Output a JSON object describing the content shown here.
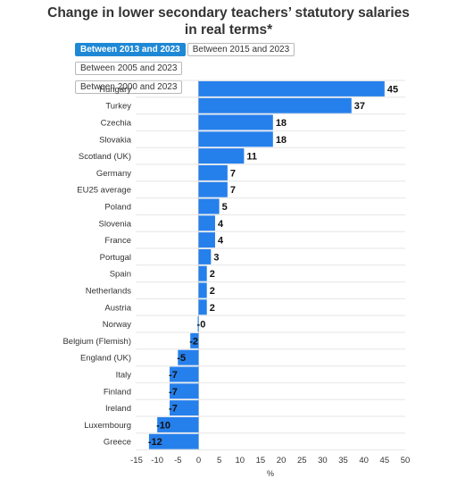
{
  "title_line1": "Change in lower secondary teachers’ statutory salaries",
  "title_line2": "in real terms*",
  "tabs": [
    {
      "label": "Between 2013 and 2023",
      "active": true
    },
    {
      "label": "Between 2015 and 2023",
      "active": false
    },
    {
      "label": "Between 2005 and 2023",
      "active": false
    },
    {
      "label": "Between 2000 and 2023",
      "active": false
    }
  ],
  "colors": {
    "bar": "#2680eb",
    "title": "#333333",
    "grid": "#e6e6e6",
    "active_tab": "#1e88d6"
  },
  "chart_data": {
    "type": "bar",
    "orientation": "horizontal",
    "categories": [
      "Hungary",
      "Turkey",
      "Czechia",
      "Slovakia",
      "Scotland (UK)",
      "Germany",
      "EU25 average",
      "Poland",
      "Slovenia",
      "France",
      "Portugal",
      "Spain",
      "Netherlands",
      "Austria",
      "Norway",
      "Belgium (Flemish)",
      "England (UK)",
      "Italy",
      "Finland",
      "Ireland",
      "Luxembourg",
      "Greece"
    ],
    "values": [
      45,
      37,
      18,
      18,
      11,
      7,
      7,
      5,
      4,
      4,
      3,
      2,
      2,
      2,
      -0.2,
      -2,
      -5,
      -7,
      -7,
      -7,
      -10,
      -12
    ],
    "data_labels": [
      "45",
      "37",
      "18",
      "18",
      "11",
      "7",
      "7",
      "5",
      "4",
      "4",
      "3",
      "2",
      "2",
      "2",
      "-0",
      "-2",
      "-5",
      "-7",
      "-7",
      "-7",
      "-10",
      "-12"
    ],
    "xlim": [
      -15,
      50
    ],
    "xticks": [
      -15,
      -10,
      -5,
      0,
      5,
      10,
      15,
      20,
      25,
      30,
      35,
      40,
      45,
      50
    ],
    "xlabel": "%",
    "grid": true
  }
}
